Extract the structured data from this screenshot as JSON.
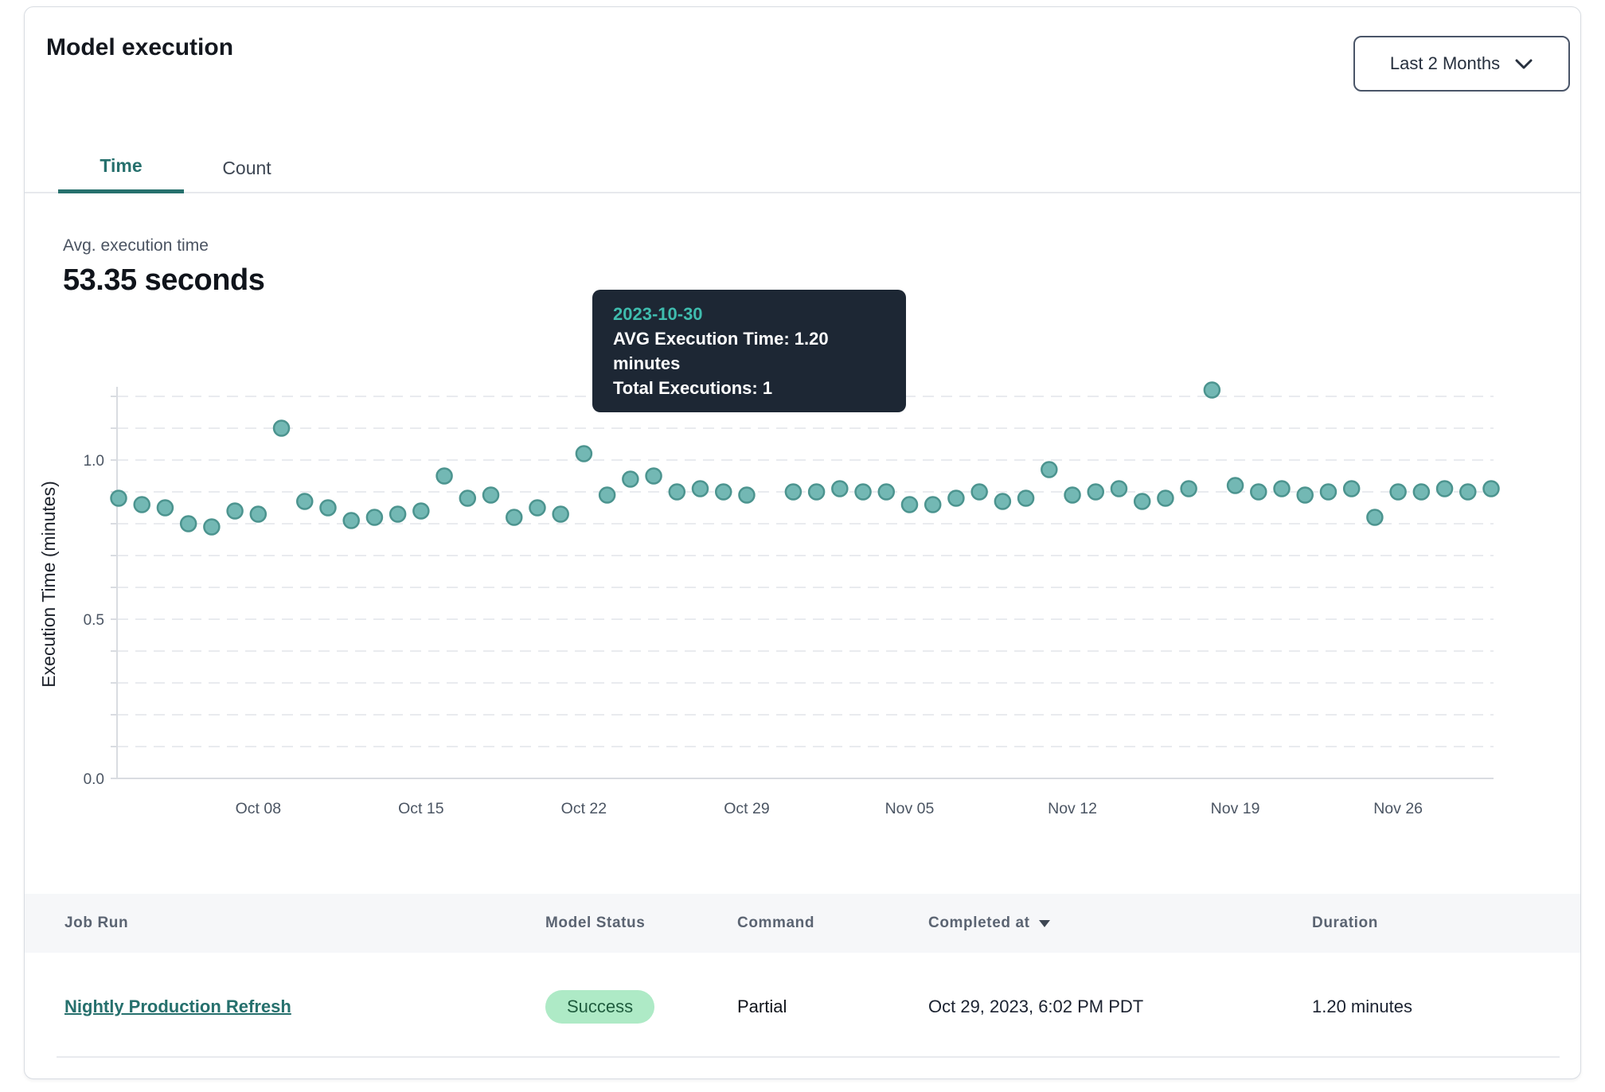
{
  "header": {
    "title": "Model execution",
    "range_selector": {
      "value": "Last 2 Months"
    }
  },
  "tabs": [
    {
      "label": "Time",
      "active": true
    },
    {
      "label": "Count",
      "active": false
    }
  ],
  "kpi": {
    "label": "Avg. execution time",
    "value": "53.35 seconds"
  },
  "tooltip": {
    "date": "2023-10-30",
    "avg_execution_time": "AVG Execution Time: 1.20 minutes",
    "total_executions": "Total Executions: 1"
  },
  "chart_data": {
    "type": "scatter",
    "title": "",
    "xlabel": "",
    "ylabel": "Execution Time (minutes)",
    "ylim": [
      0,
      1.25
    ],
    "grid": "dashed horizontal every 0.1",
    "grid_step": 0.1,
    "ytick_labels": [
      0.0,
      0.5,
      1.0
    ],
    "x_unit": "day",
    "x_start_date": "2023-10-02",
    "x_tick_labels": [
      "Oct 08",
      "Oct 15",
      "Oct 22",
      "Oct 29",
      "Nov 05",
      "Nov 12",
      "Nov 19",
      "Nov 26"
    ],
    "x_tick_indices": [
      6,
      13,
      20,
      27,
      34,
      41,
      48,
      55
    ],
    "values": [
      0.88,
      0.86,
      0.85,
      0.8,
      0.79,
      0.84,
      0.83,
      1.1,
      0.87,
      0.85,
      0.81,
      0.82,
      0.83,
      0.84,
      0.95,
      0.88,
      0.89,
      0.82,
      0.85,
      0.83,
      1.02,
      0.89,
      0.94,
      0.95,
      0.9,
      0.91,
      0.9,
      0.89,
      1.2,
      0.9,
      0.9,
      0.91,
      0.9,
      0.9,
      0.86,
      0.86,
      0.88,
      0.9,
      0.87,
      0.88,
      0.97,
      0.89,
      0.9,
      0.91,
      0.87,
      0.88,
      0.91,
      1.22,
      0.92,
      0.9,
      0.91,
      0.89,
      0.9,
      0.91,
      0.82,
      0.9,
      0.9,
      0.91,
      0.9,
      0.91
    ],
    "highlight": {
      "index": 28,
      "date": "2023-10-30",
      "value": 1.2
    },
    "point_color": "#73b8b4",
    "point_stroke": "#4c948f",
    "highlight_color": "#3a7c7e",
    "highlight_stroke": "#2f6b6d"
  },
  "table": {
    "columns": [
      "Job Run",
      "Model Status",
      "Command",
      "Completed at",
      "Duration"
    ],
    "sorted_by": "Completed at",
    "sort_direction": "desc",
    "rows": [
      {
        "job_run": "Nightly Production Refresh",
        "model_status": "Success",
        "command": "Partial",
        "completed_at": "Oct 29, 2023, 6:02 PM PDT",
        "duration": "1.20 minutes"
      }
    ]
  },
  "colors": {
    "accent_teal": "#26706d",
    "tooltip_bg": "#1d2734",
    "tooltip_date": "#3fbcae",
    "badge_bg": "#aeeac6",
    "badge_text": "#1f5c3e",
    "axis_text": "#4b5563",
    "grid_line": "#e9ebef"
  }
}
